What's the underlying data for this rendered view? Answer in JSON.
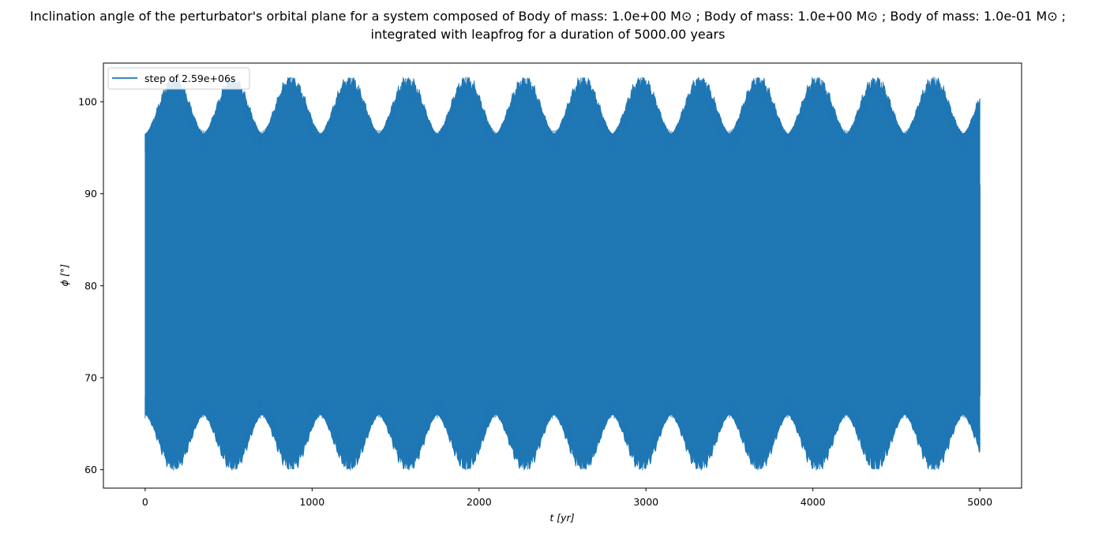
{
  "chart_data": {
    "type": "line",
    "title": "Inclination angle of the perturbator's orbital plane for a system composed of Body of mass: 1.0e+00 M⊙ ; Body of mass: 1.0e+00 M⊙ ; Body of mass: 1.0e-01 M⊙ ;",
    "subtitle": "integrated with leapfrog for a duration of 5000.00 years",
    "xlabel": "t [yr]",
    "ylabel": "ϕ [°]",
    "xlim": [
      -250,
      5250
    ],
    "ylim": [
      58,
      104.2
    ],
    "xticks": [
      0,
      1000,
      2000,
      3000,
      4000,
      5000
    ],
    "yticks": [
      60,
      70,
      80,
      90,
      100
    ],
    "grid": false,
    "legend_position": "top-left",
    "series": [
      {
        "name": "step of 2.59e+06s",
        "color": "#1f77b4",
        "x": [
          0,
          5000
        ],
        "envelope_period_years": 350,
        "upper_envelope_range": [
          96.5,
          102.3
        ],
        "lower_envelope_range": [
          60.3,
          66.0
        ],
        "end_value": 91.0
      }
    ]
  }
}
